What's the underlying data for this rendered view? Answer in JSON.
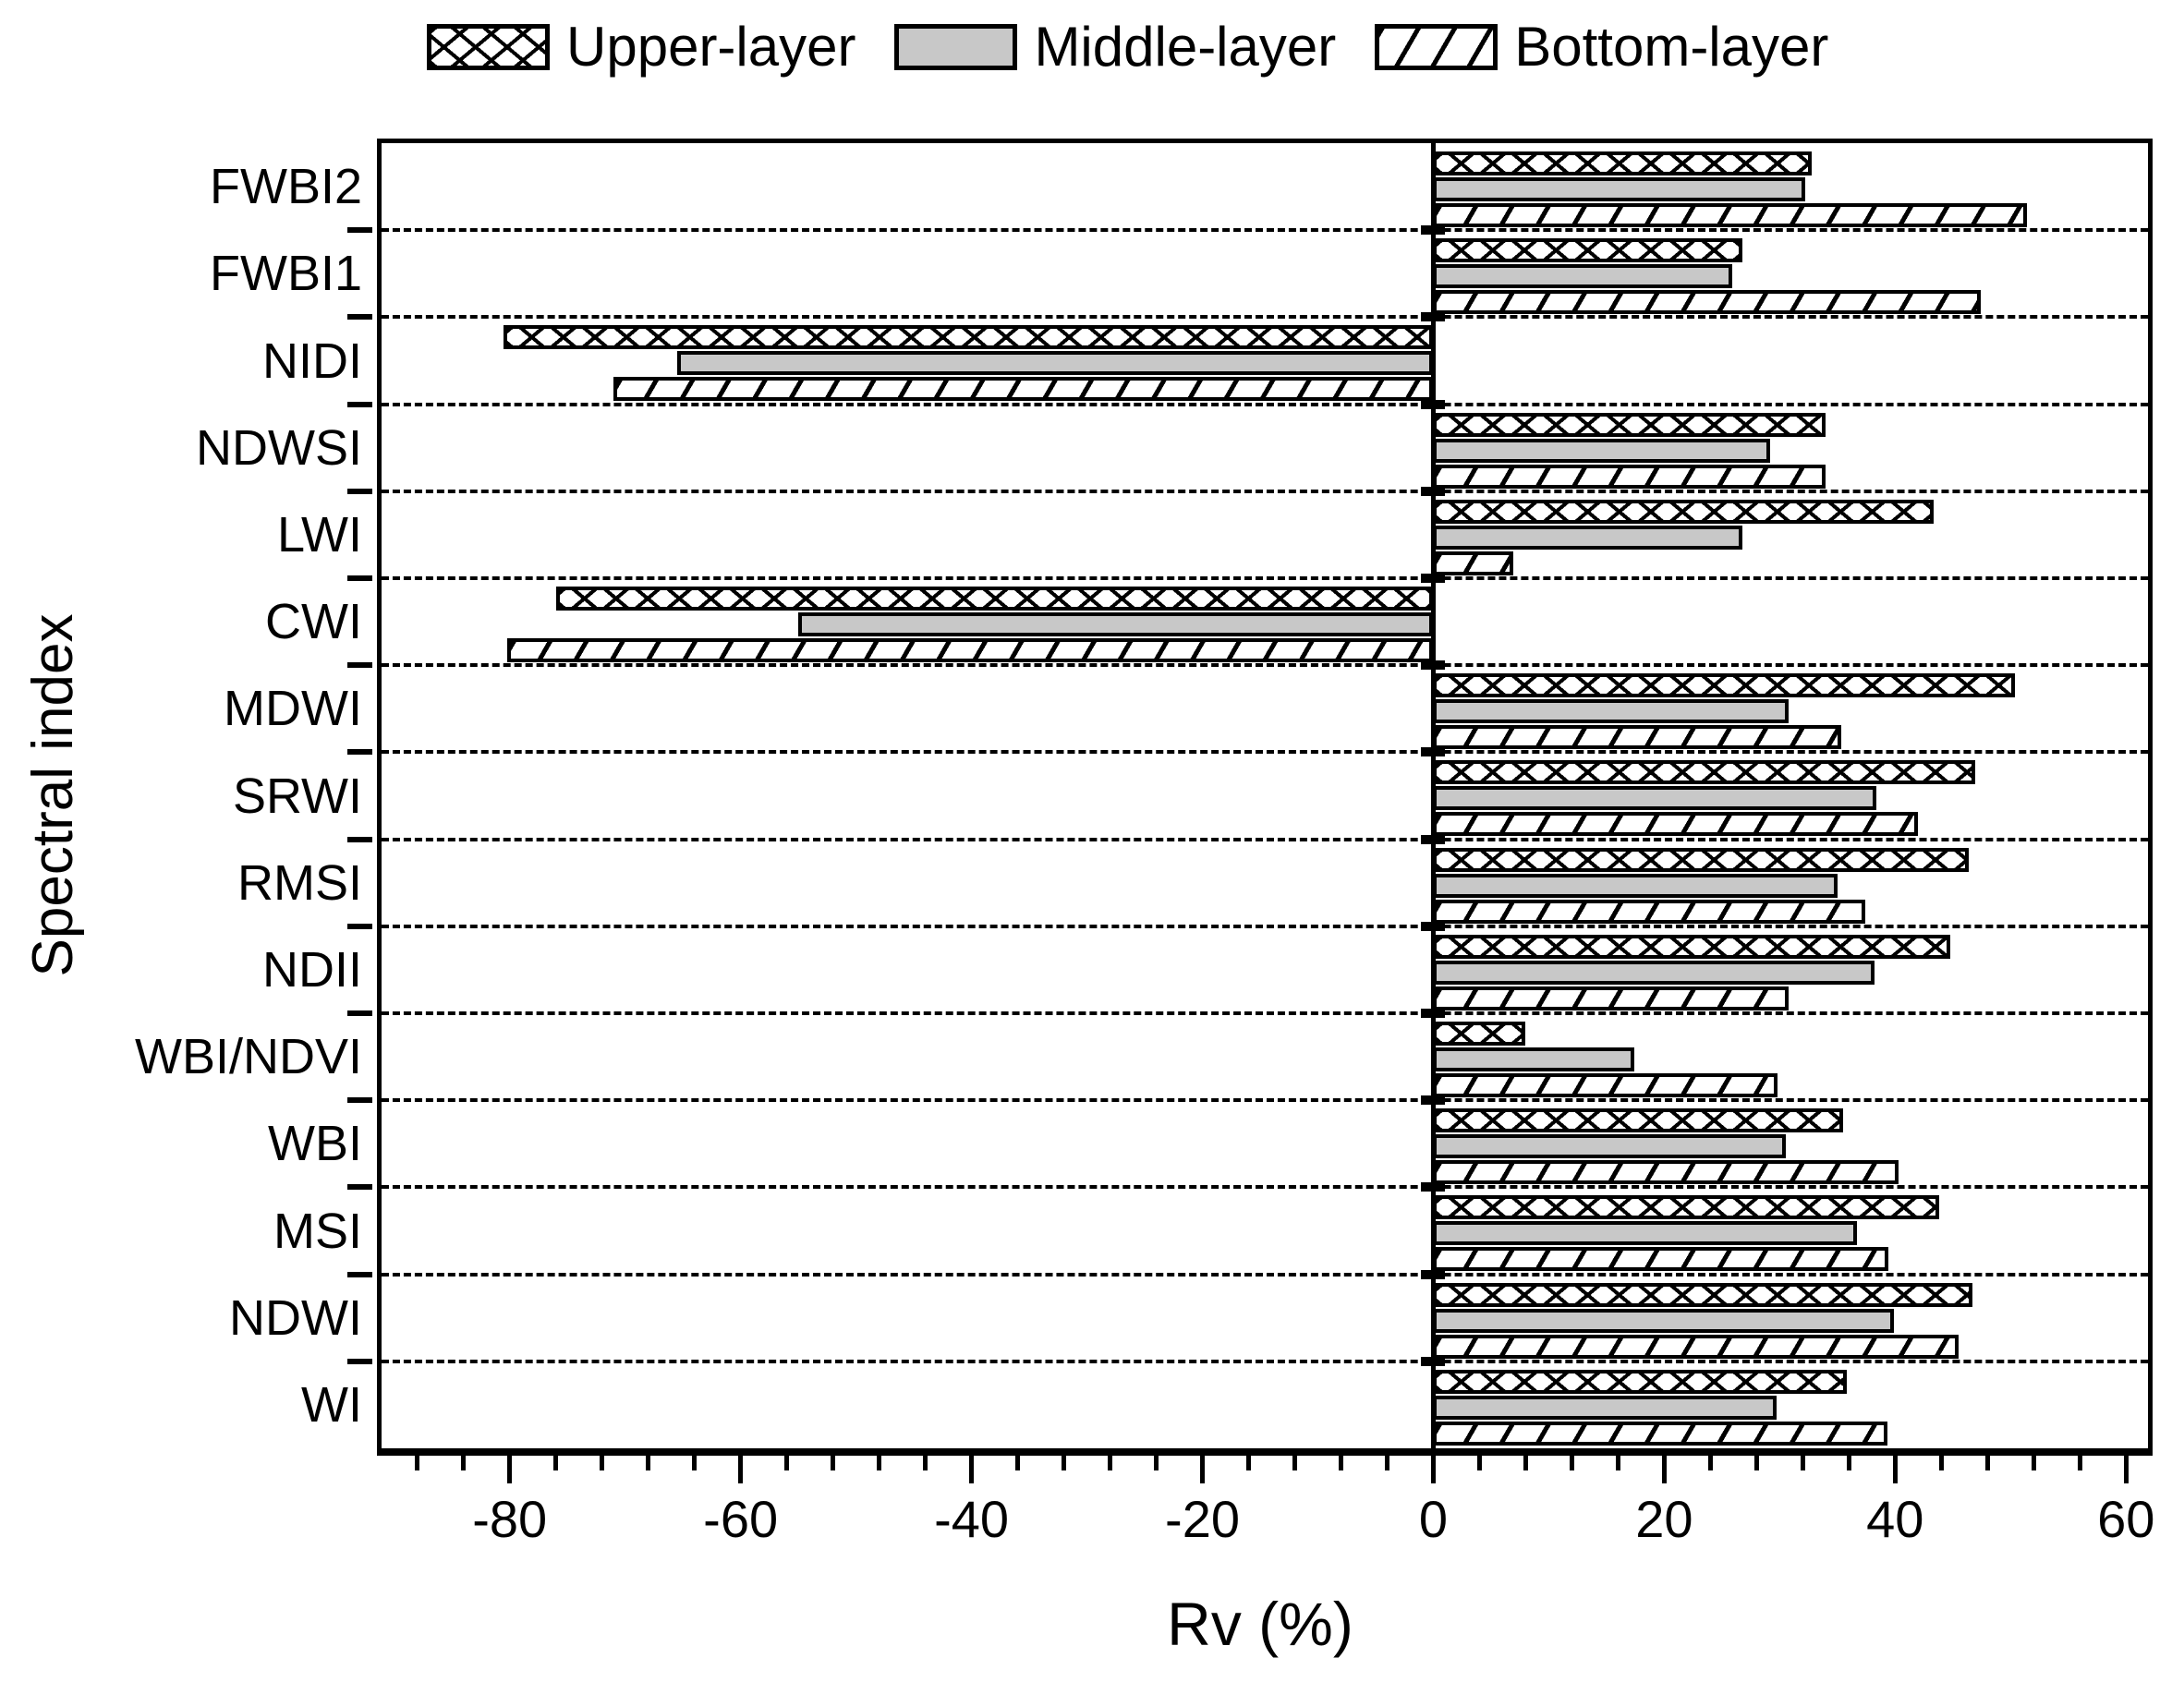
{
  "legend": {
    "items": [
      {
        "label": "Upper-layer",
        "pattern": "crosshatch"
      },
      {
        "label": "Middle-layer",
        "pattern": "solid-gray"
      },
      {
        "label": "Bottom-layer",
        "pattern": "diagonal"
      }
    ]
  },
  "colors": {
    "middle_gray": "#c8c8c8",
    "bar_outline": "#000000",
    "background": "#ffffff"
  },
  "chart_data": {
    "type": "bar",
    "orientation": "horizontal",
    "title": "",
    "xlabel": "Rv (%)",
    "ylabel": "Spectral index",
    "xlim": [
      -91.1,
      61.9
    ],
    "x_major_ticks": [
      -80,
      -60,
      -40,
      -20,
      0,
      20,
      40,
      60
    ],
    "x_minor_tick_step": 4,
    "grid": "dashed horizontal separators between categories",
    "legend_position": "top",
    "categories_top_to_bottom": [
      "FWBI2",
      "FWBI1",
      "NIDI",
      "NDWSI",
      "LWI",
      "CWI",
      "MDWI",
      "SRWI",
      "RMSI",
      "NDII",
      "WBI/NDVI",
      "WBI",
      "MSI",
      "NDWI",
      "WI"
    ],
    "series": [
      {
        "name": "Upper-layer",
        "pattern": "crosshatch",
        "values": [
          32.8,
          26.8,
          -80.5,
          34.0,
          43.3,
          -76.0,
          50.4,
          46.9,
          46.4,
          44.8,
          8.0,
          35.5,
          43.8,
          46.7,
          35.8
        ]
      },
      {
        "name": "Middle-layer",
        "pattern": "solid-gray",
        "values": [
          32.2,
          25.9,
          -65.5,
          29.2,
          26.8,
          -55.0,
          30.8,
          38.4,
          35.0,
          38.2,
          17.4,
          30.5,
          36.7,
          39.9,
          29.7
        ]
      },
      {
        "name": "Bottom-layer",
        "pattern": "diagonal",
        "values": [
          51.4,
          47.4,
          -71.0,
          34.0,
          6.9,
          -80.2,
          35.3,
          42.0,
          37.4,
          30.8,
          29.8,
          40.3,
          39.4,
          45.5,
          39.3
        ]
      }
    ]
  }
}
